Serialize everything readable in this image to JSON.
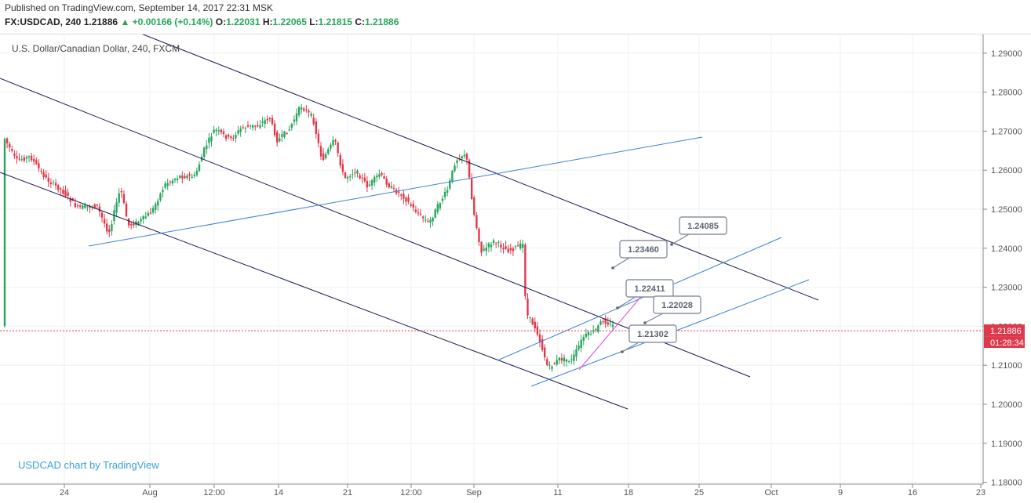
{
  "header": {
    "published": "Published on TradingView.com, September 14, 2017 22:31 MSK",
    "symbol": "FX:USDCAD, 240",
    "last": "1.21886",
    "change": "+0.00166 (+0.14%)",
    "o_label": "O:",
    "o_value": "1.22031",
    "h_label": "H:",
    "h_value": "1.22065",
    "l_label": "L:",
    "l_value": "1.21815",
    "c_label": "C:",
    "c_value": "1.21886"
  },
  "chart_data": {
    "type": "candlestick",
    "title": "U.S. Dollar/Canadian Dollar, 240, FXCM",
    "watermark": "USDCAD chart by TradingView",
    "y_ticks": [
      "1.18000",
      "1.19000",
      "1.20000",
      "1.21000",
      "1.22000",
      "1.23000",
      "1.24000",
      "1.25000",
      "1.26000",
      "1.27000",
      "1.28000",
      "1.29000"
    ],
    "ylim": [
      1.18,
      1.295
    ],
    "x_ticks": [
      "24",
      "Aug",
      "12:00",
      "14",
      "21",
      "12:00",
      "Sep",
      "11",
      "18",
      "25",
      "Oct",
      "9",
      "16",
      "23"
    ],
    "current_price": "1.21886",
    "countdown": "01:28:34",
    "callouts": [
      "1.24085",
      "1.23460",
      "1.22411",
      "1.22028",
      "1.21302"
    ],
    "colors": {
      "up": "#26a65b",
      "down": "#e0384b",
      "channel": "#1a1a4e",
      "trend": "#3b82d6",
      "wedge": "#e040e0",
      "price_line": "#e0384b"
    }
  }
}
